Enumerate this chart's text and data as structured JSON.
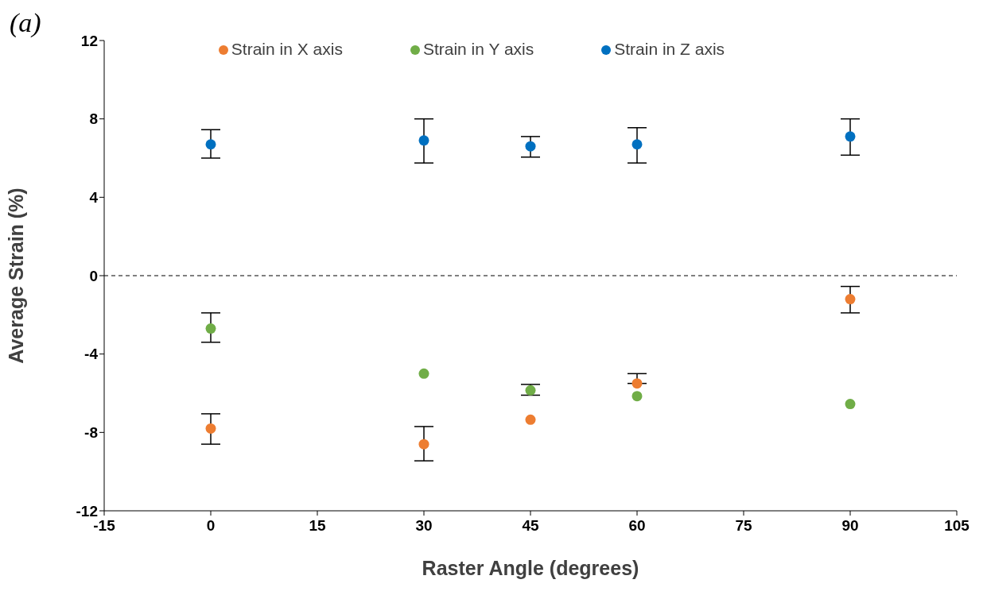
{
  "chart_data": {
    "type": "scatter",
    "xlabel": "Raster Angle (degrees)",
    "ylabel": "Average Strain (%)",
    "annotations": [
      "(a)"
    ],
    "xlim": [
      -15,
      105
    ],
    "xticks": [
      -15,
      0,
      15,
      30,
      45,
      60,
      75,
      90,
      105
    ],
    "ylim": [
      -12,
      12
    ],
    "yticks": [
      -12,
      -8,
      -4,
      0,
      4,
      8,
      12
    ],
    "grid": false,
    "legend": "top",
    "marker": "circle",
    "ref_lines": [
      {
        "axis": "y",
        "value": 0,
        "color": "#000000",
        "line_style": "dashed"
      }
    ],
    "series": [
      {
        "name": "Strain in X axis",
        "color": "#ed7d31",
        "x": [
          0,
          30,
          45,
          60,
          90
        ],
        "values": [
          -7.8,
          -8.6,
          -7.35,
          -5.5,
          -1.2
        ],
        "errors": [
          [
            -8.6,
            -7.05
          ],
          [
            -9.45,
            -7.7
          ],
          null,
          [
            -5.5,
            -5.0
          ],
          [
            -1.9,
            -0.55
          ]
        ]
      },
      {
        "name": "Strain in Y axis",
        "color": "#70ad47",
        "x": [
          0,
          30,
          45,
          60,
          90
        ],
        "values": [
          -2.7,
          -5.0,
          -5.85,
          -6.15,
          -6.55
        ],
        "errors": [
          [
            -3.4,
            -1.9
          ],
          null,
          [
            -6.1,
            -5.55
          ],
          null,
          null
        ]
      },
      {
        "name": "Strain in Z axis",
        "color": "#0070c0",
        "x": [
          0,
          30,
          45,
          60,
          90
        ],
        "values": [
          6.7,
          6.9,
          6.6,
          6.7,
          7.1
        ],
        "errors": [
          [
            6.0,
            7.45
          ],
          [
            5.75,
            8.0
          ],
          [
            6.05,
            7.1
          ],
          [
            5.75,
            7.55
          ],
          [
            6.15,
            8.0
          ]
        ]
      }
    ]
  }
}
